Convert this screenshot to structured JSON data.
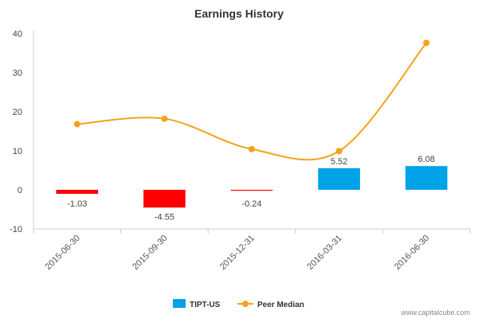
{
  "chart_data": {
    "type": "bar",
    "title": "Earnings History",
    "categories": [
      "2015-06-30",
      "2015-09-30",
      "2015-12-31",
      "2016-03-31",
      "2016-06-30"
    ],
    "series": [
      {
        "name": "TIPT-US",
        "type": "bar",
        "values": [
          -1.03,
          -4.55,
          -0.24,
          5.52,
          6.08
        ],
        "labels": [
          "-1.03",
          "-4.55",
          "-0.24",
          "5.52",
          "6.08"
        ],
        "color_positive": "#00a2e8",
        "color_negative": "#ff0000"
      },
      {
        "name": "Peer Median",
        "type": "line",
        "values": [
          16.8,
          18.2,
          10.4,
          9.9,
          37.6
        ],
        "color": "#f5a21b"
      }
    ],
    "y_ticks": [
      "-10",
      "0",
      "10",
      "20",
      "30",
      "40"
    ],
    "ylim": [
      -10,
      40
    ],
    "grid": false,
    "legend_position": "bottom-center"
  },
  "footer": {
    "source": "www.capitalcube.com"
  }
}
